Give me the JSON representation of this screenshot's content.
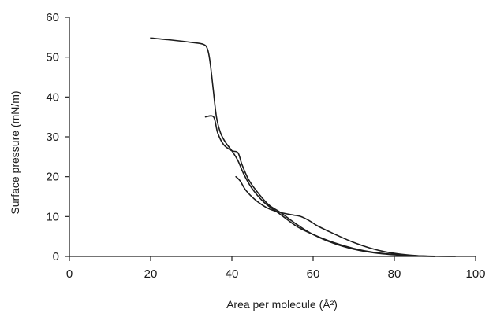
{
  "chart_data": {
    "type": "line",
    "title": "",
    "xlabel": "Area per molecule (Å²)",
    "ylabel": "Surface pressure (mN/m)",
    "xlim": [
      0,
      100
    ],
    "ylim": [
      0,
      60
    ],
    "xticks": [
      0,
      20,
      40,
      60,
      80,
      100
    ],
    "yticks": [
      0,
      10,
      20,
      30,
      40,
      50,
      60
    ],
    "xtick_labels": [
      "0",
      "20",
      "40",
      "60",
      "80",
      "100"
    ],
    "ytick_labels": [
      "0",
      "10",
      "20",
      "30",
      "40",
      "50",
      "60"
    ],
    "grid": false,
    "legend": "none",
    "series": [
      {
        "x": [
          20,
          25,
          30,
          33,
          34,
          34.6,
          35.4,
          36.2,
          37.2,
          38.5,
          40,
          41.5,
          43,
          45,
          48,
          52,
          56,
          60,
          65,
          70,
          75,
          80,
          85,
          90,
          95
        ],
        "y": [
          54.8,
          54.3,
          53.7,
          53.2,
          52,
          49,
          42,
          35,
          31,
          28.5,
          26.5,
          24,
          20.5,
          17,
          13.5,
          10.5,
          7.5,
          5.5,
          3.5,
          2,
          1,
          0.5,
          0.2,
          0.05,
          0
        ]
      },
      {
        "x": [
          33.5,
          35.5,
          36.5,
          38,
          40,
          41.5,
          42.5,
          44,
          46,
          49,
          52,
          56,
          60,
          65,
          70,
          75,
          80,
          85,
          90
        ],
        "y": [
          35,
          35,
          31,
          28,
          26.5,
          26,
          23,
          19.5,
          16.5,
          13,
          11,
          8,
          5.5,
          3.3,
          1.8,
          0.9,
          0.4,
          0.1,
          0
        ]
      },
      {
        "x": [
          41,
          42,
          43.5,
          46,
          49,
          52,
          55,
          57,
          59,
          61,
          64,
          67,
          70,
          74,
          78,
          82,
          86,
          90
        ],
        "y": [
          20,
          19,
          16.5,
          14,
          12,
          11,
          10.4,
          10,
          9,
          7.7,
          6.2,
          4.8,
          3.5,
          2.1,
          1.1,
          0.5,
          0.15,
          0
        ]
      }
    ]
  }
}
